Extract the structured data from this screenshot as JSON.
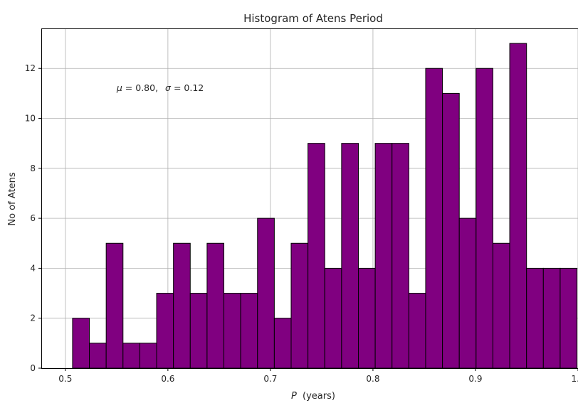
{
  "chart_data": {
    "type": "bar",
    "title": "Histogram of Atens Period",
    "xlabel": "P (years)",
    "xlabel_symbol": "P",
    "xlabel_unit": "(years)",
    "ylabel": "No of Atens",
    "xlim": [
      0.4765,
      1.0
    ],
    "ylim": [
      0,
      13.6
    ],
    "xticks": [
      0.5,
      0.6,
      0.7,
      0.8,
      0.9,
      1.0
    ],
    "xtick_labels": [
      "0.5",
      "0.6",
      "0.7",
      "0.8",
      "0.9",
      "1.0"
    ],
    "yticks": [
      0,
      2,
      4,
      6,
      8,
      10,
      12
    ],
    "ytick_labels": [
      "0",
      "2",
      "4",
      "6",
      "8",
      "10",
      "12"
    ],
    "grid": true,
    "bar_color": "#800080",
    "edge_color": "#000000",
    "annotation": {
      "mu_symbol": "μ",
      "mu_value": "= 0.80,",
      "sigma_symbol": "σ",
      "sigma_value": "= 0.12",
      "x": 0.55,
      "y": 11.1
    },
    "bin_start": 0.507,
    "bin_width": 0.0164,
    "values": [
      2,
      1,
      5,
      1,
      1,
      3,
      5,
      3,
      5,
      3,
      3,
      6,
      2,
      5,
      9,
      4,
      9,
      4,
      9,
      9,
      3,
      12,
      11,
      6,
      12,
      5,
      13,
      4,
      4,
      4
    ]
  }
}
